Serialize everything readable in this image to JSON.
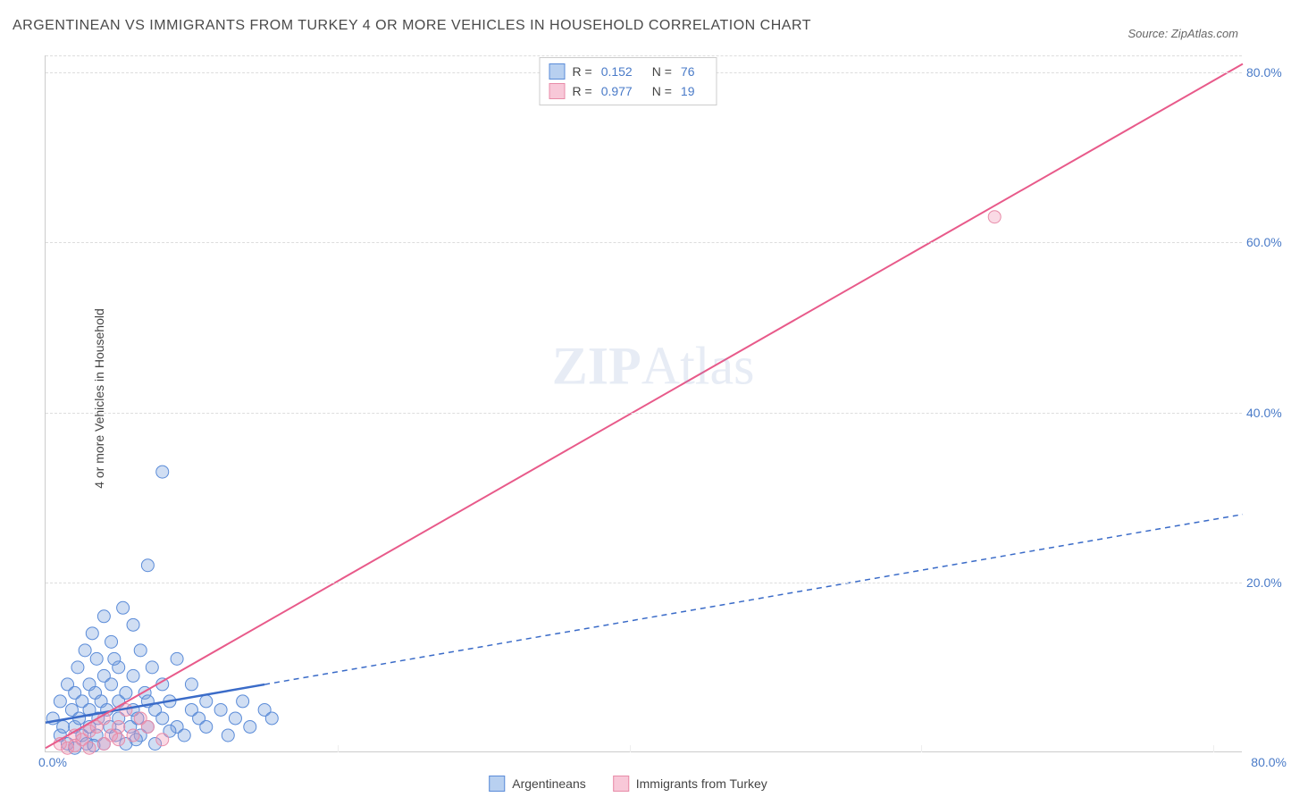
{
  "title": "ARGENTINEAN VS IMMIGRANTS FROM TURKEY 4 OR MORE VEHICLES IN HOUSEHOLD CORRELATION CHART",
  "source": "Source: ZipAtlas.com",
  "y_axis_label": "4 or more Vehicles in Household",
  "watermark_bold": "ZIP",
  "watermark_light": "Atlas",
  "chart": {
    "type": "scatter-correlation",
    "background_color": "#ffffff",
    "grid_color": "#dddddd",
    "axis_color": "#cccccc",
    "tick_color": "#4a7bc8",
    "xlim": [
      0,
      82
    ],
    "ylim": [
      0,
      82
    ],
    "x_ticks": [
      {
        "v": 0,
        "label": "0.0%"
      },
      {
        "v": 80,
        "label": "80.0%"
      }
    ],
    "y_ticks": [
      {
        "v": 20,
        "label": "20.0%"
      },
      {
        "v": 40,
        "label": "40.0%"
      },
      {
        "v": 60,
        "label": "60.0%"
      },
      {
        "v": 80,
        "label": "80.0%"
      }
    ],
    "grid_v": [
      20,
      40,
      60,
      80
    ],
    "series": [
      {
        "name": "Argentineans",
        "swatch_fill": "#b8d0f0",
        "swatch_border": "#5a8bd8",
        "marker_fill": "rgba(120,160,220,0.35)",
        "marker_stroke": "#5a8bd8",
        "marker_r": 7,
        "line_color": "#3a6bc8",
        "line_width": 2.5,
        "line_dash_after_x": 15,
        "R": "0.152",
        "N": "76",
        "trend": {
          "x1": 0,
          "y1": 3.5,
          "x2": 82,
          "y2": 28
        },
        "points": [
          [
            0.5,
            4
          ],
          [
            1,
            2
          ],
          [
            1,
            6
          ],
          [
            1.2,
            3
          ],
          [
            1.5,
            1
          ],
          [
            1.5,
            8
          ],
          [
            1.8,
            5
          ],
          [
            2,
            3
          ],
          [
            2,
            7
          ],
          [
            2,
            0.5
          ],
          [
            2.2,
            10
          ],
          [
            2.3,
            4
          ],
          [
            2.5,
            6
          ],
          [
            2.5,
            2
          ],
          [
            2.7,
            12
          ],
          [
            2.8,
            1
          ],
          [
            3,
            5
          ],
          [
            3,
            8
          ],
          [
            3,
            3
          ],
          [
            3.2,
            14
          ],
          [
            3.4,
            7
          ],
          [
            3.5,
            2
          ],
          [
            3.5,
            11
          ],
          [
            3.6,
            4
          ],
          [
            3.8,
            6
          ],
          [
            4,
            9
          ],
          [
            4,
            1
          ],
          [
            4,
            16
          ],
          [
            4.2,
            5
          ],
          [
            4.4,
            3
          ],
          [
            4.5,
            8
          ],
          [
            4.5,
            13
          ],
          [
            4.8,
            2
          ],
          [
            5,
            6
          ],
          [
            5,
            10
          ],
          [
            5,
            4
          ],
          [
            5.3,
            17
          ],
          [
            5.5,
            7
          ],
          [
            5.5,
            1
          ],
          [
            5.8,
            3
          ],
          [
            6,
            5
          ],
          [
            6,
            9
          ],
          [
            6,
            15
          ],
          [
            6.3,
            4
          ],
          [
            6.5,
            2
          ],
          [
            6.5,
            12
          ],
          [
            6.8,
            7
          ],
          [
            7,
            22
          ],
          [
            7,
            6
          ],
          [
            7,
            3
          ],
          [
            7.3,
            10
          ],
          [
            7.5,
            5
          ],
          [
            7.5,
            1
          ],
          [
            8,
            8
          ],
          [
            8,
            4
          ],
          [
            8,
            33
          ],
          [
            8.5,
            6
          ],
          [
            9,
            3
          ],
          [
            9,
            11
          ],
          [
            9.5,
            2
          ],
          [
            10,
            5
          ],
          [
            10,
            8
          ],
          [
            10.5,
            4
          ],
          [
            11,
            6
          ],
          [
            11,
            3
          ],
          [
            12,
            5
          ],
          [
            12.5,
            2
          ],
          [
            13,
            4
          ],
          [
            13.5,
            6
          ],
          [
            14,
            3
          ],
          [
            15,
            5
          ],
          [
            15.5,
            4
          ],
          [
            8.5,
            2.5
          ],
          [
            6.2,
            1.5
          ],
          [
            4.7,
            11
          ],
          [
            3.3,
            0.8
          ]
        ]
      },
      {
        "name": "Immigrants from Turkey",
        "swatch_fill": "#f8c8d8",
        "swatch_border": "#e88ba8",
        "marker_fill": "rgba(240,150,180,0.35)",
        "marker_stroke": "#e88ba8",
        "marker_r": 7,
        "line_color": "#e85a8a",
        "line_width": 2,
        "line_dash_after_x": 999,
        "R": "0.977",
        "N": "19",
        "trend": {
          "x1": 0,
          "y1": 0.5,
          "x2": 82,
          "y2": 81
        },
        "points": [
          [
            1,
            1
          ],
          [
            1.5,
            0.5
          ],
          [
            2,
            2
          ],
          [
            2,
            0.8
          ],
          [
            2.5,
            1.5
          ],
          [
            3,
            2.5
          ],
          [
            3,
            0.5
          ],
          [
            3.5,
            3
          ],
          [
            4,
            1
          ],
          [
            4,
            4
          ],
          [
            4.5,
            2
          ],
          [
            5,
            3
          ],
          [
            5,
            1.5
          ],
          [
            5.5,
            5
          ],
          [
            6,
            2
          ],
          [
            6.5,
            4
          ],
          [
            7,
            3
          ],
          [
            8,
            1.5
          ],
          [
            65,
            63
          ]
        ]
      }
    ]
  },
  "legend_top_labels": {
    "R": "R  =",
    "N": "N  ="
  },
  "legend_bottom": [
    "Argentineans",
    "Immigrants from Turkey"
  ]
}
